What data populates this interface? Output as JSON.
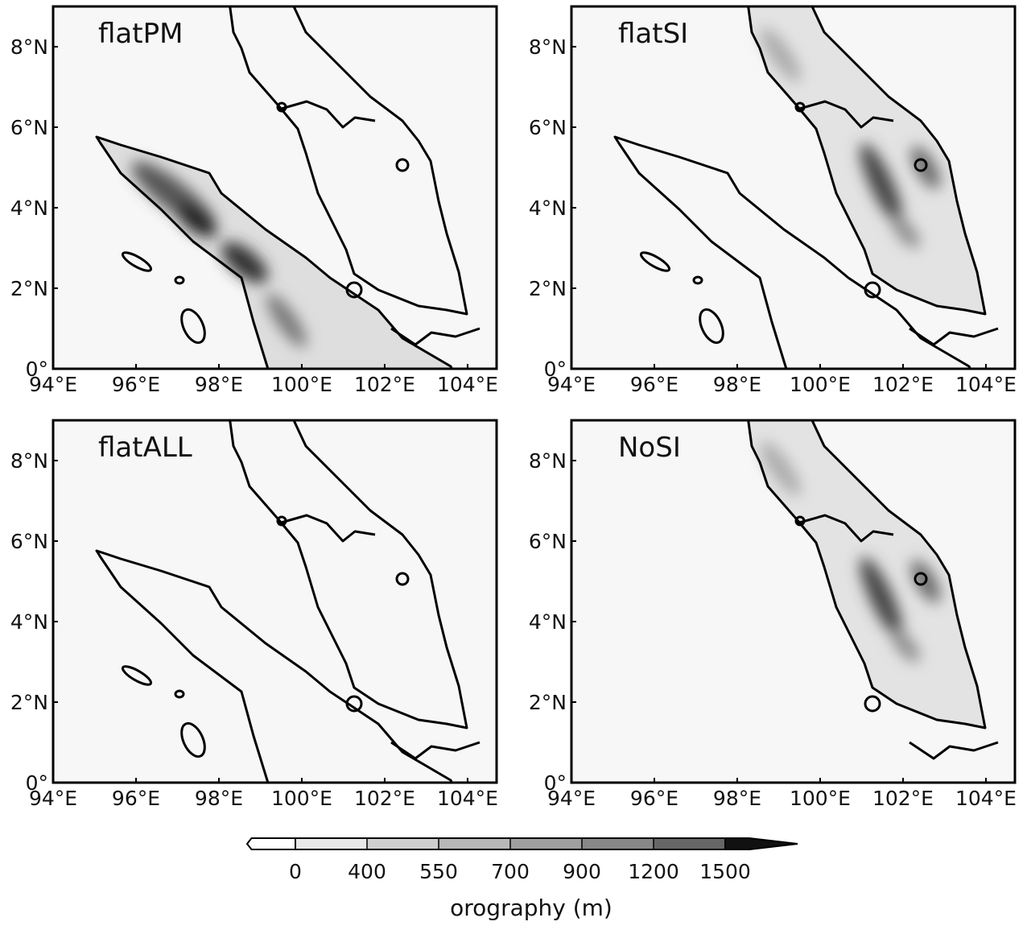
{
  "panels": [
    {
      "title": "flatPM"
    },
    {
      "title": "flatSI"
    },
    {
      "title": "flatALL"
    },
    {
      "title": "NoSI"
    }
  ],
  "axes": {
    "xlim": [
      94,
      104.7
    ],
    "ylim": [
      0,
      9
    ],
    "xticks": [
      {
        "value": 94,
        "label": "94°E"
      },
      {
        "value": 96,
        "label": "96°E"
      },
      {
        "value": 98,
        "label": "98°E"
      },
      {
        "value": 100,
        "label": "100°E"
      },
      {
        "value": 102,
        "label": "102°E"
      },
      {
        "value": 104,
        "label": "104°E"
      }
    ],
    "yticks": [
      {
        "value": 0,
        "label": "0°"
      },
      {
        "value": 2,
        "label": "2°N"
      },
      {
        "value": 4,
        "label": "4°N"
      },
      {
        "value": 6,
        "label": "6°N"
      },
      {
        "value": 8,
        "label": "8°N"
      }
    ]
  },
  "colorbar": {
    "ticks": [
      0,
      400,
      550,
      700,
      900,
      1200,
      1500
    ],
    "label": "orography (m)"
  }
}
